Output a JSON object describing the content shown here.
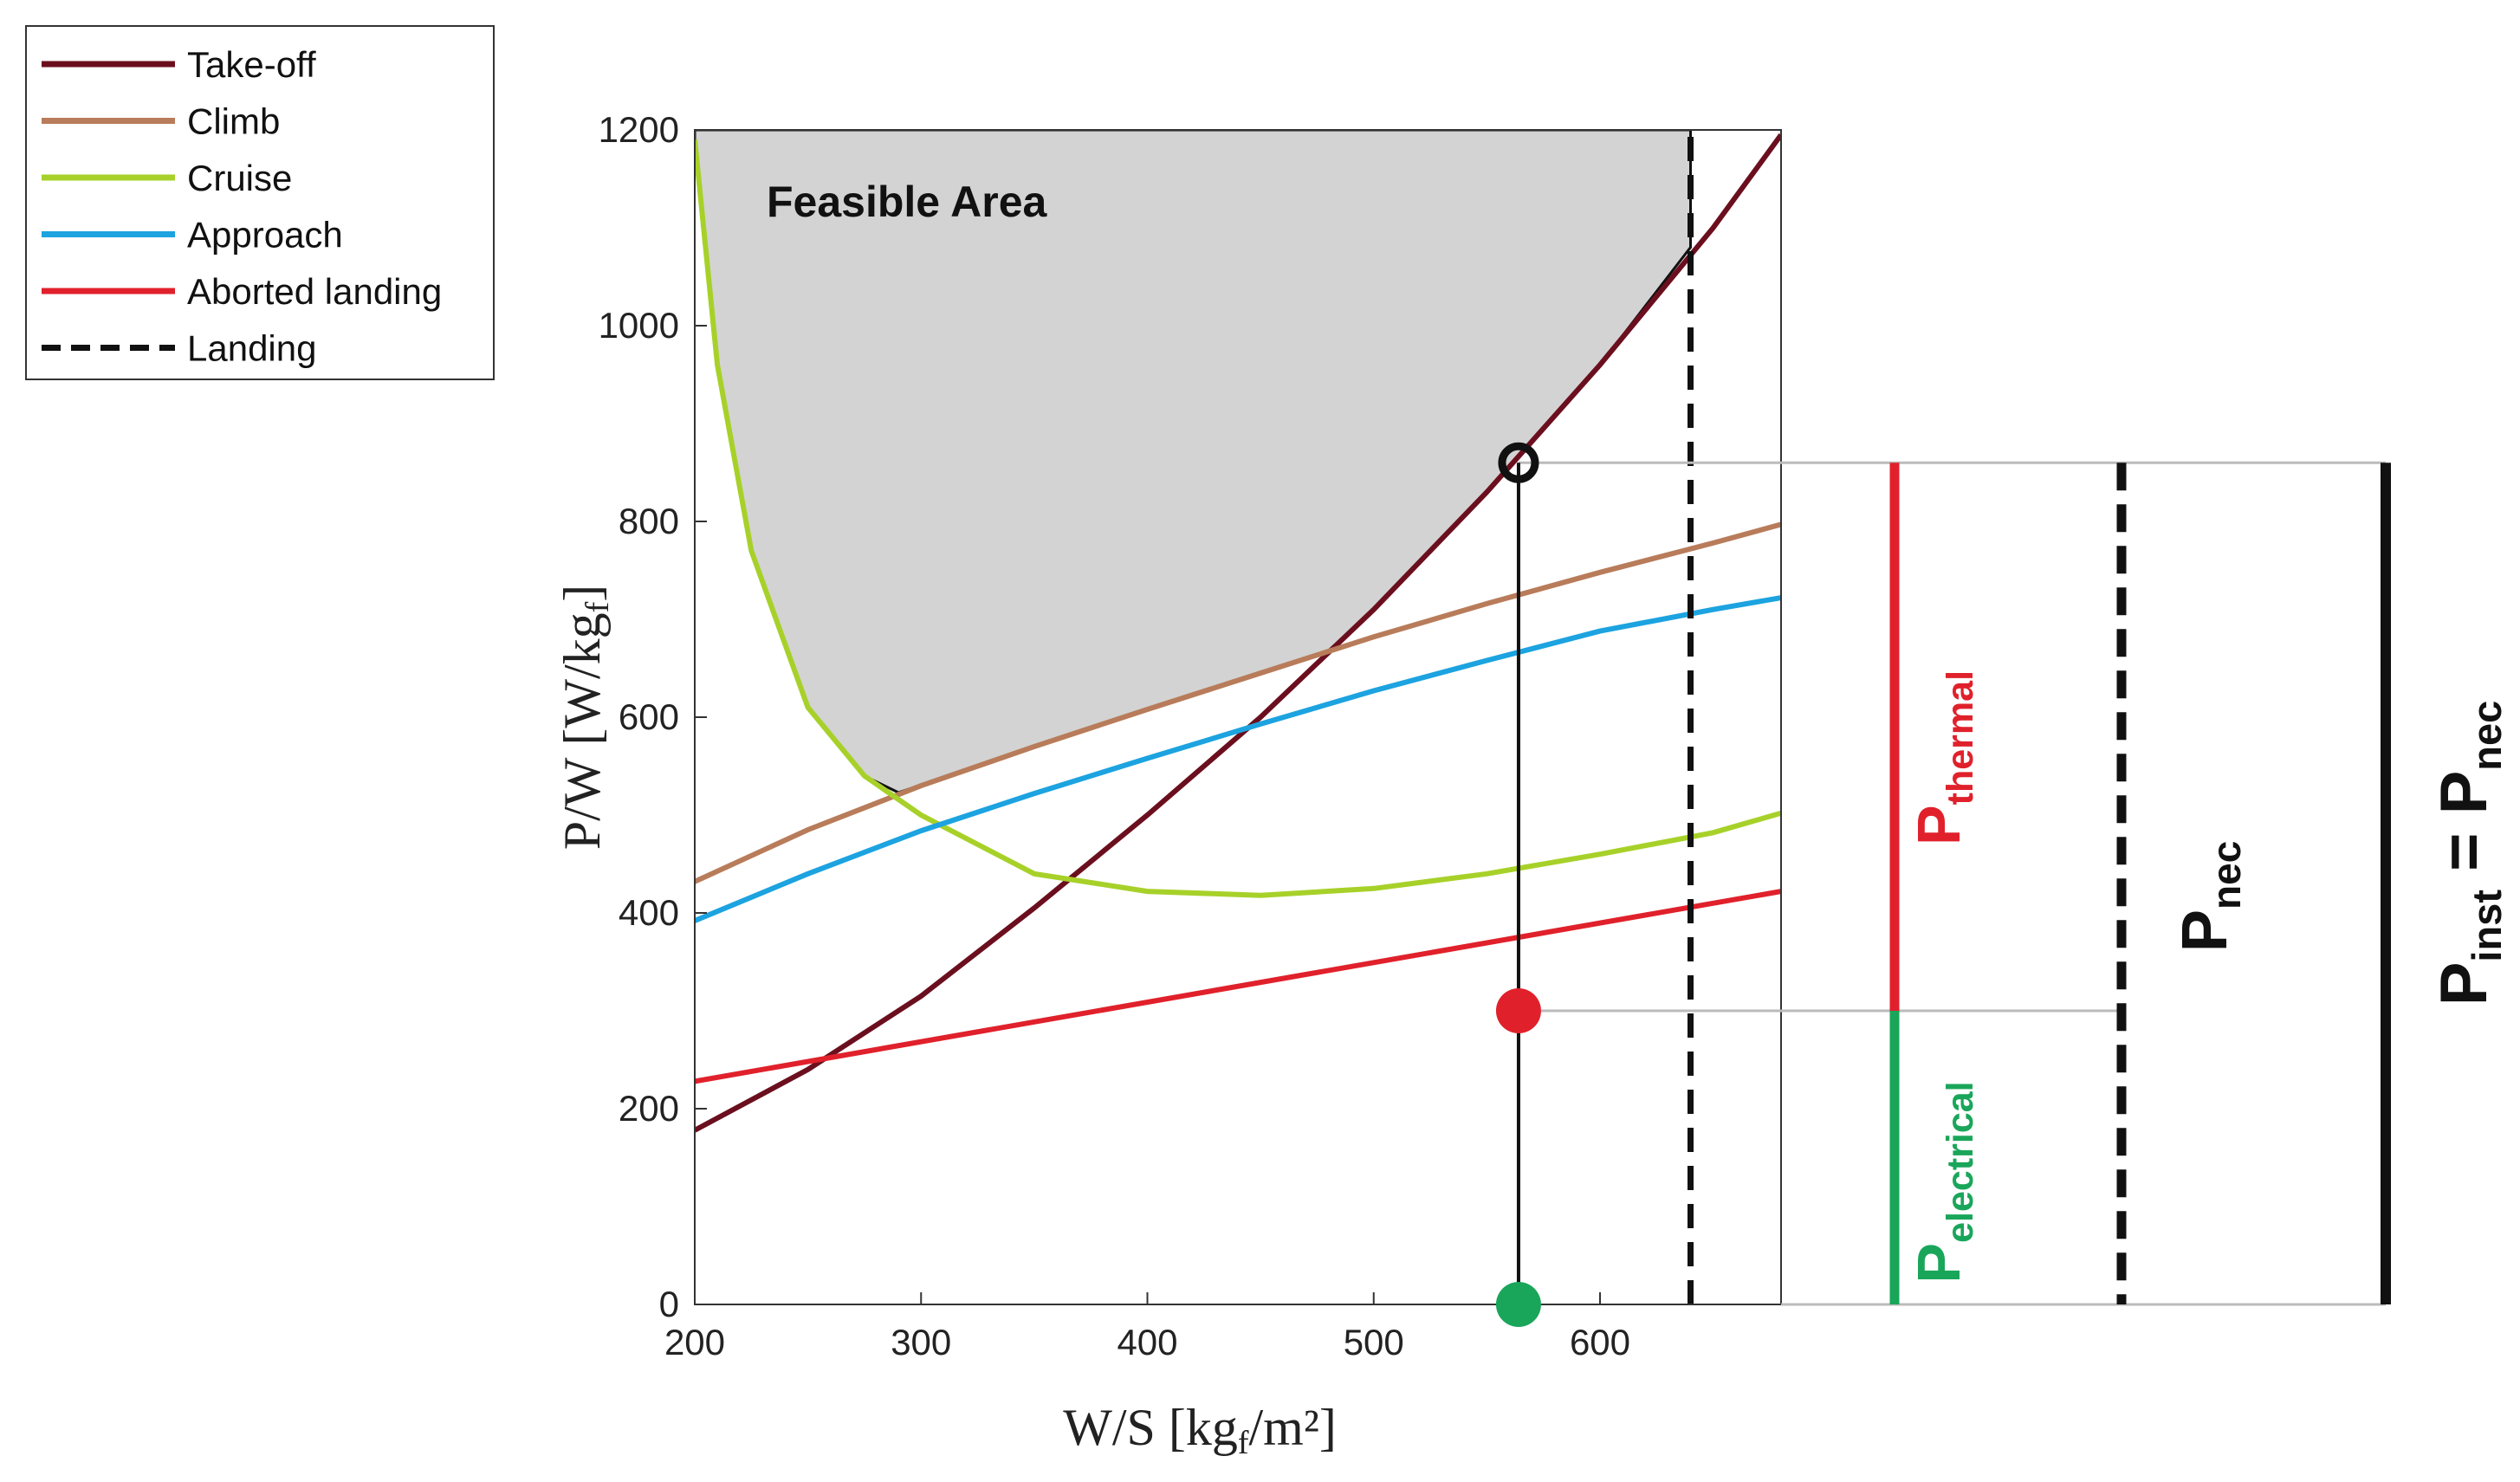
{
  "chart_data": {
    "type": "line",
    "xlabel": "W/S [kg",
    "xlabel_sub": "f",
    "xlabel_end": "/m²]",
    "ylabel": "P/W [W/kg",
    "ylabel_sub": "f",
    "ylabel_end": "]",
    "xlim": [
      200,
      680
    ],
    "ylim": [
      0,
      1200
    ],
    "xticks": [
      "200",
      "300",
      "400",
      "500",
      "600"
    ],
    "yticks": [
      "0",
      "200",
      "400",
      "600",
      "800",
      "1000",
      "1200"
    ],
    "grid": false,
    "legend_position": "top-left",
    "series": [
      {
        "name": "Take-off",
        "color": "#6b0f1e",
        "style": "solid",
        "x": [
          200,
          250,
          300,
          350,
          400,
          450,
          500,
          550,
          600,
          650,
          680
        ],
        "y": [
          178,
          240,
          315,
          405,
          500,
          600,
          710,
          830,
          960,
          1100,
          1195
        ]
      },
      {
        "name": "Climb",
        "color": "#b87c5a",
        "style": "solid",
        "x": [
          200,
          250,
          300,
          350,
          400,
          450,
          500,
          550,
          600,
          650,
          680
        ],
        "y": [
          432,
          485,
          530,
          570,
          608,
          645,
          682,
          716,
          748,
          778,
          797
        ]
      },
      {
        "name": "Cruise",
        "color": "#a7d129",
        "style": "solid",
        "x": [
          200,
          210,
          225,
          250,
          275,
          300,
          350,
          400,
          450,
          500,
          550,
          600,
          650,
          680
        ],
        "y": [
          1190,
          960,
          770,
          610,
          540,
          500,
          440,
          422,
          418,
          425,
          440,
          460,
          482,
          502
        ]
      },
      {
        "name": "Approach",
        "color": "#1ca3e0",
        "style": "solid",
        "x": [
          200,
          250,
          300,
          350,
          400,
          450,
          500,
          550,
          600,
          650,
          680
        ],
        "y": [
          392,
          440,
          484,
          522,
          558,
          593,
          627,
          658,
          688,
          710,
          722
        ]
      },
      {
        "name": "Aborted landing",
        "color": "#e0212b",
        "style": "solid",
        "x": [
          200,
          680
        ],
        "y": [
          228,
          422
        ]
      },
      {
        "name": "Landing",
        "color": "#111111",
        "style": "dashed",
        "x": [
          640,
          640
        ],
        "y": [
          0,
          1200
        ]
      }
    ],
    "feasible_area": {
      "label": "Feasible Area",
      "boundary_x": [
        290,
        350,
        400,
        450,
        480,
        500,
        550,
        600,
        640
      ],
      "boundary_y": [
        523,
        570,
        608,
        645,
        668,
        710,
        830,
        960,
        1080
      ]
    },
    "design_point": {
      "x": 564,
      "y": 860,
      "thermal_split": 300
    },
    "right_panel": {
      "thermal_color": "#e0212b",
      "electrical_color": "#1aa65a",
      "label_thermal_main": "P",
      "label_thermal_sub": "thermal",
      "label_electrical_main": "P",
      "label_electrical_sub": "electrical",
      "label_nec_main": "P",
      "label_nec_sub": "nec",
      "label_inst_main": "P",
      "label_inst_sub": "inst",
      "label_equals": " = ",
      "label_inst_rhs_main": "P",
      "label_inst_rhs_sub": "nec"
    }
  }
}
